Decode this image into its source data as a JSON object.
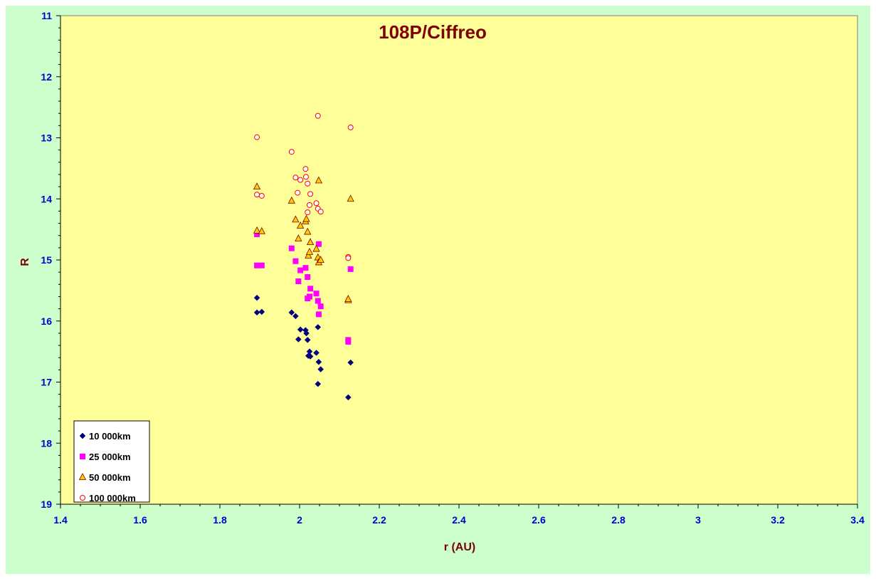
{
  "chart_data": {
    "type": "scatter",
    "title": "108P/Ciffreo",
    "xlabel": "r (AU)",
    "ylabel": "R",
    "xlim": [
      1.4,
      3.4
    ],
    "ylim": [
      11,
      19
    ],
    "y_inverted": true,
    "x_ticks": [
      "1.4",
      "1.6",
      "1.8",
      "2",
      "2.2",
      "2.4",
      "2.6",
      "2.8",
      "3",
      "3.2",
      "3.4"
    ],
    "y_ticks": [
      "11",
      "12",
      "13",
      "14",
      "15",
      "16",
      "17",
      "18",
      "19"
    ],
    "grid": false,
    "legend_position": "bottom-left",
    "plot_background": "#ffff99",
    "chart_background": "#ccffcc",
    "series": [
      {
        "name": "10 000km",
        "marker": "diamond",
        "color": "#000080",
        "points": [
          [
            1.893,
            15.62
          ],
          [
            1.893,
            15.86
          ],
          [
            1.905,
            15.85
          ],
          [
            1.98,
            15.86
          ],
          [
            1.99,
            15.92
          ],
          [
            1.997,
            16.3
          ],
          [
            2.002,
            16.14
          ],
          [
            2.015,
            16.15
          ],
          [
            2.017,
            16.2
          ],
          [
            2.02,
            16.31
          ],
          [
            2.022,
            16.57
          ],
          [
            2.025,
            16.5
          ],
          [
            2.027,
            16.58
          ],
          [
            2.042,
            16.52
          ],
          [
            2.046,
            16.1
          ],
          [
            2.048,
            16.67
          ],
          [
            2.046,
            17.03
          ],
          [
            2.053,
            16.79
          ],
          [
            2.122,
            17.25
          ],
          [
            2.128,
            16.68
          ]
        ]
      },
      {
        "name": "25 000km",
        "marker": "square",
        "color": "#ff00ff",
        "points": [
          [
            1.893,
            14.58
          ],
          [
            1.893,
            15.09
          ],
          [
            1.905,
            15.09
          ],
          [
            1.98,
            14.81
          ],
          [
            1.99,
            15.02
          ],
          [
            1.997,
            15.35
          ],
          [
            2.002,
            15.17
          ],
          [
            2.015,
            15.13
          ],
          [
            2.02,
            15.28
          ],
          [
            2.02,
            15.63
          ],
          [
            2.025,
            15.6
          ],
          [
            2.027,
            15.47
          ],
          [
            2.042,
            15.55
          ],
          [
            2.046,
            15.67
          ],
          [
            2.048,
            15.89
          ],
          [
            2.048,
            14.74
          ],
          [
            2.053,
            15.76
          ],
          [
            2.122,
            16.34
          ],
          [
            2.122,
            16.31
          ],
          [
            2.128,
            15.15
          ]
        ]
      },
      {
        "name": "50 000km",
        "marker": "triangle",
        "color": "#ffcc00",
        "points": [
          [
            1.893,
            13.8
          ],
          [
            1.893,
            14.52
          ],
          [
            1.905,
            14.53
          ],
          [
            1.98,
            14.03
          ],
          [
            1.99,
            14.34
          ],
          [
            1.997,
            14.65
          ],
          [
            2.002,
            14.44
          ],
          [
            2.015,
            14.37
          ],
          [
            2.017,
            14.33
          ],
          [
            2.02,
            14.54
          ],
          [
            2.022,
            14.93
          ],
          [
            2.025,
            14.87
          ],
          [
            2.027,
            14.71
          ],
          [
            2.042,
            14.82
          ],
          [
            2.046,
            14.96
          ],
          [
            2.048,
            15.04
          ],
          [
            2.048,
            13.7
          ],
          [
            2.053,
            15.0
          ],
          [
            2.122,
            15.66
          ],
          [
            2.122,
            15.64
          ],
          [
            2.128,
            14.0
          ]
        ]
      },
      {
        "name": "100 000km",
        "marker": "circle",
        "color": "#ff0000",
        "points": [
          [
            1.893,
            12.99
          ],
          [
            1.893,
            13.93
          ],
          [
            1.905,
            13.95
          ],
          [
            1.98,
            13.23
          ],
          [
            1.99,
            13.65
          ],
          [
            1.995,
            13.9
          ],
          [
            2.002,
            13.69
          ],
          [
            2.015,
            13.51
          ],
          [
            2.016,
            13.64
          ],
          [
            2.02,
            13.75
          ],
          [
            2.02,
            14.22
          ],
          [
            2.025,
            14.1
          ],
          [
            2.027,
            13.92
          ],
          [
            2.042,
            14.07
          ],
          [
            2.046,
            14.16
          ],
          [
            2.046,
            12.64
          ],
          [
            2.053,
            14.21
          ],
          [
            2.122,
            14.95
          ],
          [
            2.122,
            14.97
          ],
          [
            2.128,
            12.83
          ]
        ]
      }
    ]
  }
}
